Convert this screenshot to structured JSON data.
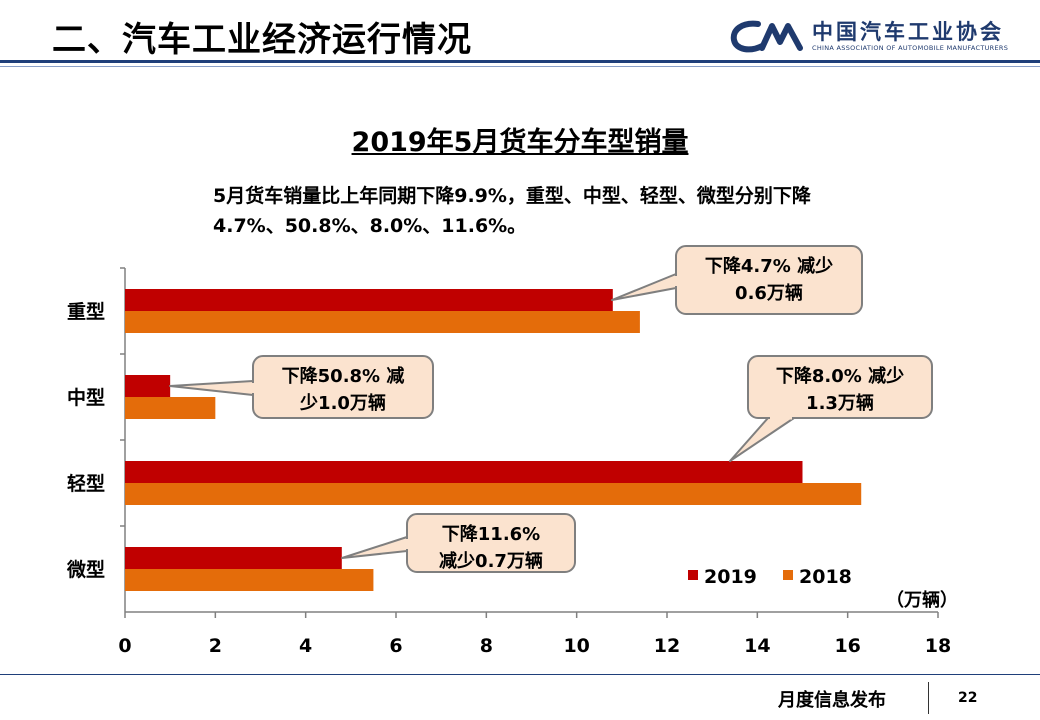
{
  "slide": {
    "title": "二、汽车工业经济运行情况",
    "footer_label": "月度信息发布",
    "page_number": "22"
  },
  "logo": {
    "mark": "CAAM",
    "name_cn": "中国汽车工业协会",
    "name_en": "CHINA ASSOCIATION OF AUTOMOBILE MANUFACTURERS"
  },
  "summary_lines": [
    "5月货车销量比上年同期下降9.9%，重型、中型、轻型、微型分别下降",
    "4.7%、50.8%、8.0%、11.6%。"
  ],
  "chart_data": {
    "type": "bar",
    "orientation": "horizontal",
    "title": "2019年5月货车分车型销量",
    "categories": [
      "重型",
      "中型",
      "轻型",
      "微型"
    ],
    "series": [
      {
        "name": "2019",
        "color": "#c00000",
        "values": [
          10.8,
          1.0,
          15.0,
          4.8
        ]
      },
      {
        "name": "2018",
        "color": "#e46c0a",
        "values": [
          11.4,
          2.0,
          16.3,
          5.5
        ]
      }
    ],
    "xlim": [
      0,
      18
    ],
    "xticks": [
      "0",
      "2",
      "4",
      "6",
      "8",
      "10",
      "12",
      "14",
      "16",
      "18"
    ],
    "unit_label": "（万辆）",
    "legend_position": "bottom-right",
    "grid": false,
    "annotations": [
      {
        "category": "重型",
        "lines": [
          "下降4.7% 减少",
          "0.6万辆"
        ]
      },
      {
        "category": "中型",
        "lines": [
          "下降50.8% 减",
          "少1.0万辆"
        ]
      },
      {
        "category": "轻型",
        "lines": [
          "下降8.0% 减少",
          "1.3万辆"
        ]
      },
      {
        "category": "微型",
        "lines": [
          "下降11.6%",
          "减少0.7万辆"
        ]
      }
    ]
  }
}
